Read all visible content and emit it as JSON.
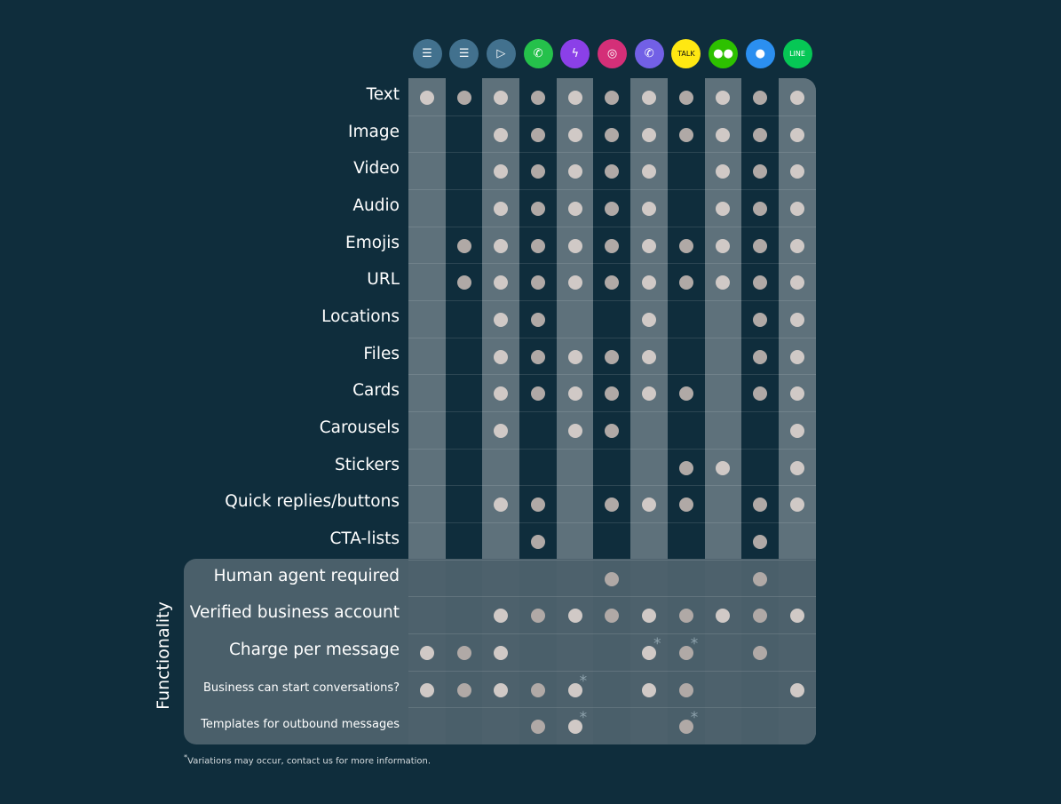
{
  "channels": [
    {
      "name": "sms-icon",
      "glyph": "☰",
      "color": "#42718e"
    },
    {
      "name": "rich-sms-icon",
      "glyph": "☰",
      "color": "#42718e"
    },
    {
      "name": "rcs-icon",
      "glyph": "▷",
      "color": "#42718e"
    },
    {
      "name": "whatsapp-icon",
      "glyph": "✆",
      "color": "#25c14b"
    },
    {
      "name": "messenger-icon",
      "glyph": "ϟ",
      "color": "#8b40e8"
    },
    {
      "name": "instagram-icon",
      "glyph": "◎",
      "color": "#d42f78"
    },
    {
      "name": "viber-icon",
      "glyph": "✆",
      "color": "#7260e6"
    },
    {
      "name": "kakaotalk-icon",
      "glyph": "TALK",
      "color": "#ffe812",
      "text_color": "#111"
    },
    {
      "name": "wechat-icon",
      "glyph": "●●",
      "color": "#2dc100"
    },
    {
      "name": "apple-messages-icon",
      "glyph": "●",
      "color": "#2b8ff0"
    },
    {
      "name": "line-icon",
      "glyph": "LINE",
      "color": "#06c755"
    }
  ],
  "rows": [
    {
      "label": "Text",
      "values": "11111111111"
    },
    {
      "label": "Image",
      "values": "00111111111"
    },
    {
      "label": "Video",
      "values": "00111110111"
    },
    {
      "label": "Audio",
      "values": "00111110111"
    },
    {
      "label": "Emojis",
      "values": "01111111111"
    },
    {
      "label": "URL",
      "values": "01111111111"
    },
    {
      "label": "Locations",
      "values": "00110010011"
    },
    {
      "label": "Files",
      "values": "00111110011"
    },
    {
      "label": "Cards",
      "values": "00111111011"
    },
    {
      "label": "Carousels",
      "values": "00101100001"
    },
    {
      "label": "Stickers",
      "values": "00000001101"
    },
    {
      "label": "Quick replies/buttons",
      "values": "00110111011"
    },
    {
      "label": "CTA-lists",
      "values": "00010000010"
    },
    {
      "label": "Human agent required",
      "values": "00000100010"
    },
    {
      "label": "Verified business account",
      "values": "00111111111"
    },
    {
      "label": "Charge per message",
      "values": "111000**010"
    },
    {
      "label": "Business can start conversations?",
      "values": "1111*011001",
      "small": true
    },
    {
      "label": "Templates for outbound messages",
      "values": "0001*00*000",
      "small": true
    }
  ],
  "section_title": "Functionality",
  "footnote_mark": "*",
  "footnote": "Variations may occur, contact us for more information."
}
